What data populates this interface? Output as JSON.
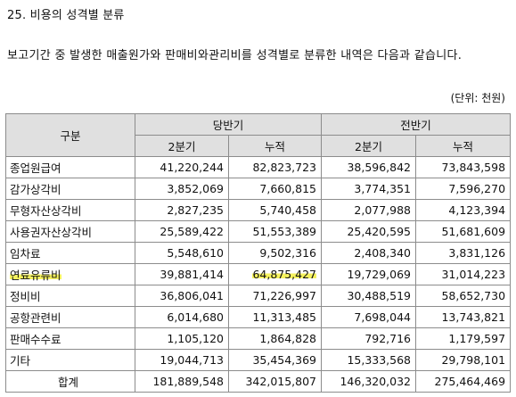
{
  "heading": "25. 비용의 성격별 분류",
  "intro": "보고기간 중 발생한 매출원가와 판매비와관리비를 성격별로 분류한 내역은 다음과 같습니다.",
  "unit": "(단위: 천원)",
  "table": {
    "header": {
      "category": "구분",
      "current_period": "당반기",
      "prior_period": "전반기",
      "quarter": "2분기",
      "cumulative": "누적"
    },
    "rows": [
      {
        "label": "종업원급여",
        "cur_q": "41,220,244",
        "cur_cum": "82,823,723",
        "prev_q": "38,596,842",
        "prev_cum": "73,843,598"
      },
      {
        "label": "감가상각비",
        "cur_q": "3,852,069",
        "cur_cum": "7,660,815",
        "prev_q": "3,774,351",
        "prev_cum": "7,596,270"
      },
      {
        "label": "무형자산상각비",
        "cur_q": "2,827,235",
        "cur_cum": "5,740,458",
        "prev_q": "2,077,988",
        "prev_cum": "4,123,394"
      },
      {
        "label": "사용권자산상각비",
        "cur_q": "25,589,422",
        "cur_cum": "51,553,389",
        "prev_q": "25,420,595",
        "prev_cum": "51,681,609"
      },
      {
        "label": "임차료",
        "cur_q": "5,548,610",
        "cur_cum": "9,502,316",
        "prev_q": "2,408,340",
        "prev_cum": "3,831,126"
      },
      {
        "label": "연료유류비",
        "cur_q": "39,881,414",
        "cur_cum": "64,875,427",
        "prev_q": "19,729,069",
        "prev_cum": "31,014,223"
      },
      {
        "label": "정비비",
        "cur_q": "36,806,041",
        "cur_cum": "71,226,997",
        "prev_q": "30,488,519",
        "prev_cum": "58,652,730"
      },
      {
        "label": "공항관련비",
        "cur_q": "6,014,680",
        "cur_cum": "11,313,485",
        "prev_q": "7,698,044",
        "prev_cum": "13,743,821"
      },
      {
        "label": "판매수수료",
        "cur_q": "1,105,120",
        "cur_cum": "1,864,828",
        "prev_q": "792,716",
        "prev_cum": "1,179,597"
      },
      {
        "label": "기타",
        "cur_q": "19,044,713",
        "cur_cum": "35,454,369",
        "prev_q": "15,333,568",
        "prev_cum": "29,798,101"
      }
    ],
    "total": {
      "label": "합계",
      "cur_q": "181,889,548",
      "cur_cum": "342,015,807",
      "prev_q": "146,320,032",
      "prev_cum": "275,464,469"
    }
  },
  "highlight_color": "#f5f25e"
}
